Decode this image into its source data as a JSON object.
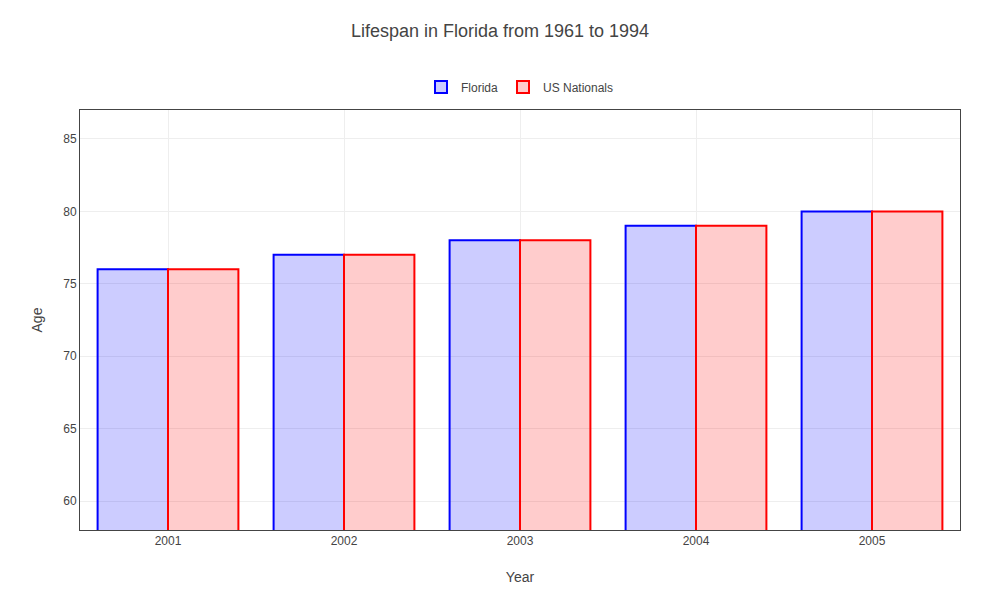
{
  "chart_data": {
    "type": "bar",
    "title": "Lifespan in Florida from 1961 to 1994",
    "xlabel": "Year",
    "ylabel": "Age",
    "categories": [
      "2001",
      "2002",
      "2003",
      "2004",
      "2005"
    ],
    "series": [
      {
        "name": "Florida",
        "color": "#0000ff",
        "values": [
          76,
          77,
          78,
          79,
          80
        ]
      },
      {
        "name": "US Nationals",
        "color": "#ff0000",
        "values": [
          76,
          77,
          78,
          79,
          80
        ]
      }
    ],
    "ylim": [
      58,
      87
    ],
    "yticks": [
      60,
      65,
      70,
      75,
      80,
      85
    ],
    "grid": true,
    "legend": "upper center"
  }
}
